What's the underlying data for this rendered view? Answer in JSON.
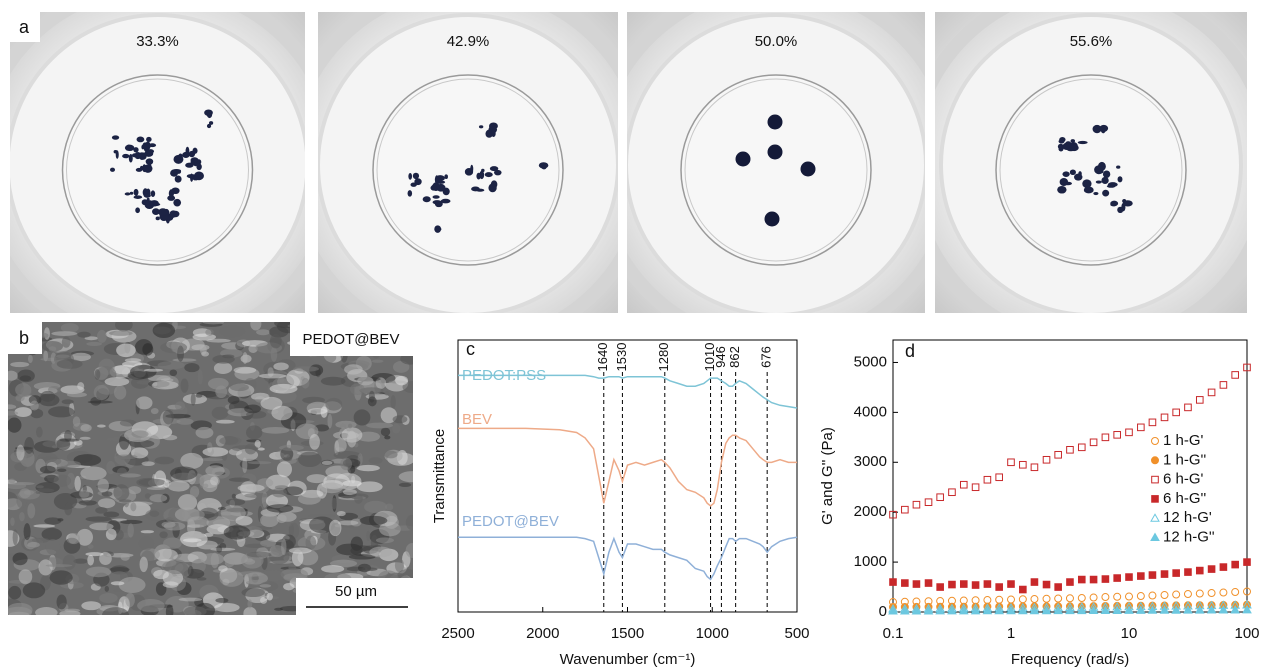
{
  "panel_a": {
    "label": "a",
    "photos": [
      "33.3%",
      "42.9%",
      "50.0%",
      "55.6%"
    ]
  },
  "panel_b": {
    "label": "b",
    "caption": "PEDOT@BEV",
    "scale_bar": "50 µm"
  },
  "chart_data": [
    {
      "type": "line",
      "panel_label": "c",
      "x_label": "Wavenumber (cm⁻¹)",
      "y_label": "Transmittance",
      "xlim": [
        2500,
        500
      ],
      "xticks": [
        2500,
        2000,
        1500,
        1000,
        500
      ],
      "ylim": [
        0,
        100
      ],
      "peaks": [
        1640,
        1530,
        1280,
        1010,
        946,
        862,
        676
      ],
      "x": [
        2500,
        2300,
        2100,
        1900,
        1800,
        1750,
        1700,
        1670,
        1640,
        1610,
        1580,
        1550,
        1530,
        1500,
        1450,
        1400,
        1350,
        1300,
        1280,
        1250,
        1200,
        1150,
        1100,
        1050,
        1030,
        1010,
        990,
        970,
        946,
        920,
        900,
        880,
        862,
        840,
        800,
        760,
        720,
        700,
        676,
        650,
        600,
        550,
        500
      ],
      "series": [
        {
          "name": "PEDOT:PSS",
          "color": "#7ec4d6",
          "values": [
            87,
            87,
            87,
            87,
            87,
            87,
            86.5,
            86,
            86,
            86.5,
            86.5,
            86.5,
            86,
            86.5,
            86.5,
            86.5,
            86.5,
            86.5,
            86,
            85,
            84,
            83,
            83,
            84,
            85,
            86,
            86,
            86,
            85,
            84,
            83,
            83,
            84,
            85,
            84,
            82,
            80,
            79,
            78,
            77,
            76,
            75.5,
            75
          ]
        },
        {
          "name": "BEV",
          "color": "#eeaa88",
          "values": [
            67.5,
            67.5,
            67.5,
            67,
            66,
            64,
            60,
            50,
            40,
            48,
            56,
            52,
            48,
            54,
            55,
            54,
            55,
            56,
            55,
            53,
            48,
            45,
            44,
            42,
            40,
            39,
            40,
            45,
            55,
            62,
            64,
            65,
            65,
            64,
            63,
            60,
            57,
            56,
            55,
            55,
            56,
            55,
            55
          ]
        },
        {
          "name": "PEDOT@BEV",
          "color": "#8fb0d8",
          "values": [
            27.5,
            27.5,
            27.5,
            27.5,
            27.5,
            27,
            26,
            20,
            14,
            22,
            27,
            22,
            20,
            25,
            25,
            24,
            23,
            23,
            22,
            21,
            20,
            19,
            16,
            15,
            13,
            12,
            14,
            17,
            20,
            24,
            27,
            27,
            26,
            27,
            27,
            26,
            25,
            24,
            22,
            24,
            26,
            27,
            27.5
          ]
        }
      ]
    },
    {
      "type": "scatter",
      "panel_label": "d",
      "x_label": "Frequency (rad/s)",
      "y_label": "G' and G'' (Pa)",
      "log_x": true,
      "xlim": [
        0.1,
        100
      ],
      "xticks": [
        0.1,
        1,
        10,
        100
      ],
      "ylim": [
        0,
        5450
      ],
      "yticks": [
        0,
        1000,
        2000,
        3000,
        4000,
        5000
      ],
      "legend": "right",
      "x": [
        0.1,
        0.126,
        0.158,
        0.2,
        0.251,
        0.316,
        0.398,
        0.501,
        0.631,
        0.794,
        1,
        1.26,
        1.58,
        2,
        2.51,
        3.16,
        3.98,
        5.01,
        6.31,
        7.94,
        10,
        12.6,
        15.8,
        20,
        25.1,
        31.6,
        39.8,
        50.1,
        63.1,
        79.4,
        100
      ],
      "series": [
        {
          "name": "1 h-G'",
          "color": "#f0902a",
          "marker": "circle",
          "filled": false,
          "values": [
            200,
            205,
            210,
            215,
            220,
            225,
            230,
            235,
            240,
            245,
            250,
            255,
            260,
            265,
            270,
            275,
            280,
            290,
            300,
            305,
            310,
            320,
            330,
            340,
            350,
            360,
            370,
            380,
            390,
            400,
            410
          ]
        },
        {
          "name": "1 h-G''",
          "color": "#f0902a",
          "marker": "circle",
          "filled": true,
          "values": [
            100,
            100,
            102,
            102,
            104,
            104,
            106,
            106,
            108,
            108,
            110,
            110,
            112,
            112,
            114,
            114,
            116,
            118,
            120,
            122,
            124,
            126,
            128,
            130,
            132,
            134,
            136,
            138,
            140,
            142,
            145
          ]
        },
        {
          "name": "6 h-G'",
          "color": "#c8282a",
          "marker": "square",
          "filled": false,
          "values": [
            1950,
            2050,
            2150,
            2200,
            2300,
            2400,
            2550,
            2500,
            2650,
            2700,
            3000,
            2950,
            2900,
            3050,
            3150,
            3250,
            3300,
            3400,
            3500,
            3550,
            3600,
            3700,
            3800,
            3900,
            4000,
            4100,
            4250,
            4400,
            4550,
            4750,
            4900
          ]
        },
        {
          "name": "6 h-G''",
          "color": "#c8282a",
          "marker": "square",
          "filled": true,
          "values": [
            600,
            580,
            560,
            580,
            500,
            550,
            560,
            540,
            560,
            500,
            560,
            450,
            600,
            550,
            500,
            600,
            650,
            650,
            660,
            680,
            700,
            720,
            740,
            760,
            780,
            800,
            830,
            860,
            900,
            950,
            1000
          ]
        },
        {
          "name": "12 h-G'",
          "color": "#6cc8e0",
          "marker": "triangle",
          "filled": false,
          "values": [
            60,
            62,
            64,
            66,
            68,
            70,
            72,
            74,
            76,
            78,
            80,
            82,
            84,
            86,
            88,
            90,
            93,
            96,
            99,
            102,
            105,
            108,
            111,
            114,
            117,
            120,
            124,
            128,
            132,
            136,
            140
          ]
        },
        {
          "name": "12 h-G''",
          "color": "#6cc8e0",
          "marker": "triangle",
          "filled": true,
          "values": [
            20,
            20,
            21,
            21,
            22,
            22,
            23,
            23,
            24,
            24,
            25,
            25,
            26,
            26,
            27,
            27,
            28,
            29,
            30,
            31,
            32,
            33,
            34,
            35,
            36,
            37,
            38,
            39,
            40,
            41,
            42
          ]
        }
      ]
    }
  ]
}
